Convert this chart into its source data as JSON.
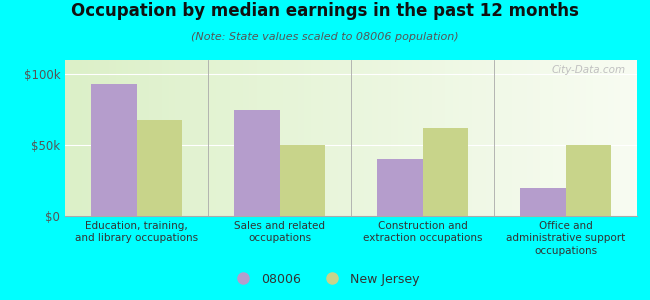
{
  "title": "Occupation by median earnings in the past 12 months",
  "subtitle": "(Note: State values scaled to 08006 population)",
  "categories": [
    "Education, training,\nand library occupations",
    "Sales and related\noccupations",
    "Construction and\nextraction occupations",
    "Office and\nadministrative support\noccupations"
  ],
  "values_08006": [
    93000,
    75000,
    40000,
    20000
  ],
  "values_nj": [
    68000,
    50000,
    62000,
    50000
  ],
  "color_08006": "#b59dcc",
  "color_nj": "#c8d48a",
  "ylim": [
    0,
    110000
  ],
  "yticks": [
    0,
    50000,
    100000
  ],
  "yticklabels": [
    "$0",
    "$50k",
    "$100k"
  ],
  "background_color": "#00ffff",
  "legend_label_08006": "08006",
  "legend_label_nj": "New Jersey",
  "watermark": "City-Data.com",
  "bar_width": 0.32
}
